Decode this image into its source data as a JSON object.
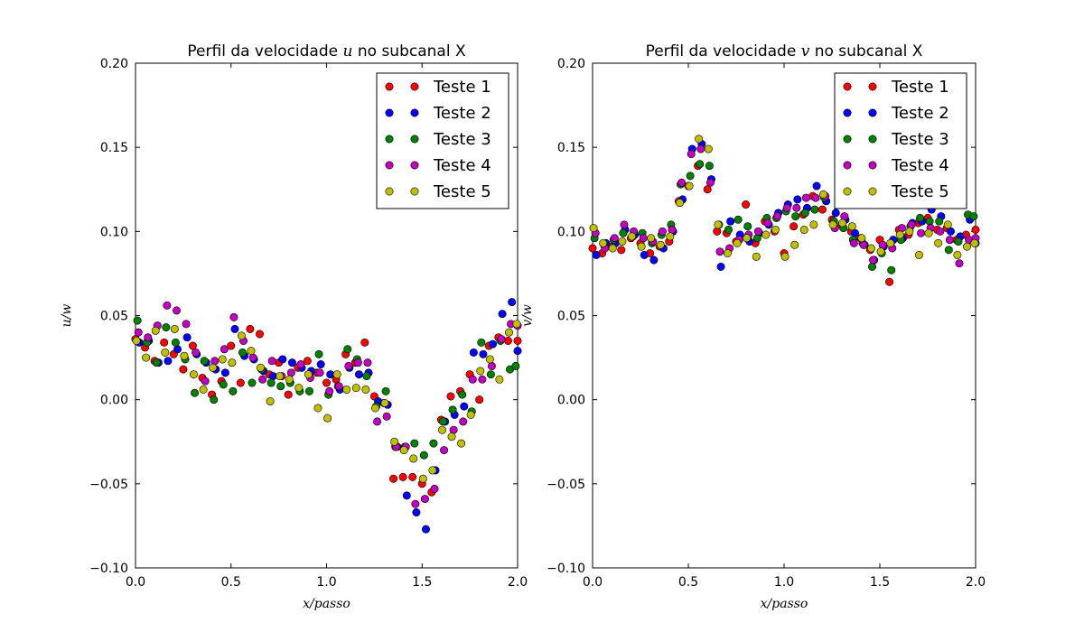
{
  "chart_data": [
    {
      "type": "scatter",
      "title_parts": [
        "Perfil da velocidade ",
        "u",
        " no subcanal X"
      ],
      "xlabel": "x/passo",
      "ylabel": "u/w",
      "xlim": [
        0.0,
        2.0
      ],
      "ylim": [
        -0.1,
        0.2
      ],
      "xticks": [
        "0.0",
        "0.5",
        "1.0",
        "1.5",
        "2.0"
      ],
      "yticks": [
        "−0.10",
        "−0.05",
        "0.00",
        "0.05",
        "0.10",
        "0.15",
        "0.20"
      ],
      "legend_position": "top-right",
      "series": [
        {
          "name": "Teste 1",
          "color": "#ff0000",
          "x": [
            0.0,
            0.05,
            0.1,
            0.15,
            0.2,
            0.25,
            0.3,
            0.35,
            0.4,
            0.45,
            0.5,
            0.55,
            0.6,
            0.65,
            0.7,
            0.75,
            0.8,
            0.85,
            0.9,
            0.95,
            1.0,
            1.05,
            1.1,
            1.15,
            1.2,
            1.25,
            1.3,
            1.35,
            1.4,
            1.45,
            1.5,
            1.55,
            1.6,
            1.65,
            1.7,
            1.75,
            1.8,
            1.85,
            1.9,
            1.95,
            2.0
          ],
          "y": [
            0.036,
            0.031,
            0.023,
            0.034,
            0.027,
            0.018,
            0.032,
            0.013,
            0.003,
            0.011,
            0.032,
            0.01,
            0.042,
            0.039,
            0.015,
            0.022,
            0.003,
            0.019,
            0.023,
            0.016,
            0.01,
            0.012,
            0.027,
            0.022,
            0.034,
            0.002,
            -0.002,
            -0.047,
            -0.046,
            -0.046,
            -0.05,
            -0.055,
            -0.012,
            0.002,
            0.005,
            0.015,
            0.0,
            0.032,
            0.037,
            0.035,
            0.035
          ]
        },
        {
          "name": "Teste 2",
          "color": "#0000ff",
          "x": [
            0.02,
            0.07,
            0.12,
            0.17,
            0.22,
            0.27,
            0.32,
            0.37,
            0.42,
            0.47,
            0.52,
            0.57,
            0.62,
            0.67,
            0.72,
            0.77,
            0.82,
            0.87,
            0.92,
            0.97,
            1.02,
            1.07,
            1.12,
            1.17,
            1.22,
            1.27,
            1.32,
            1.37,
            1.42,
            1.47,
            1.52,
            1.57,
            1.62,
            1.67,
            1.72,
            1.77,
            1.82,
            1.87,
            1.92,
            1.97,
            2.0
          ],
          "y": [
            0.034,
            0.035,
            0.022,
            0.023,
            0.03,
            0.037,
            0.027,
            0.022,
            0.018,
            0.016,
            0.042,
            0.026,
            0.024,
            0.017,
            0.014,
            0.024,
            0.022,
            0.019,
            0.017,
            0.021,
            0.015,
            0.006,
            0.019,
            0.015,
            0.016,
            -0.001,
            -0.003,
            -0.028,
            -0.057,
            -0.067,
            -0.077,
            -0.042,
            -0.013,
            -0.009,
            -0.004,
            0.028,
            0.027,
            0.033,
            0.051,
            0.058,
            0.029
          ]
        },
        {
          "name": "Teste 3",
          "color": "#008000",
          "x": [
            0.01,
            0.06,
            0.11,
            0.16,
            0.21,
            0.26,
            0.31,
            0.36,
            0.41,
            0.46,
            0.51,
            0.56,
            0.61,
            0.66,
            0.71,
            0.76,
            0.81,
            0.86,
            0.91,
            0.96,
            1.01,
            1.06,
            1.11,
            1.16,
            1.21,
            1.26,
            1.31,
            1.36,
            1.41,
            1.46,
            1.51,
            1.56,
            1.61,
            1.66,
            1.71,
            1.76,
            1.81,
            1.86,
            1.91,
            1.96,
            1.99
          ],
          "y": [
            0.047,
            0.034,
            0.022,
            0.043,
            0.034,
            0.024,
            0.004,
            0.023,
            0.0,
            0.009,
            0.005,
            0.028,
            0.01,
            0.018,
            0.01,
            0.008,
            0.01,
            0.005,
            0.005,
            0.027,
            0.003,
            0.008,
            0.03,
            0.024,
            0.014,
            -0.004,
            0.005,
            -0.028,
            -0.028,
            -0.026,
            -0.033,
            -0.026,
            -0.013,
            -0.006,
            0.003,
            -0.007,
            0.034,
            0.015,
            0.035,
            0.018,
            0.02
          ]
        },
        {
          "name": "Teste 4",
          "color": "#bf00bf",
          "x": [
            0.015,
            0.065,
            0.115,
            0.165,
            0.215,
            0.265,
            0.315,
            0.365,
            0.415,
            0.465,
            0.515,
            0.565,
            0.615,
            0.665,
            0.715,
            0.765,
            0.815,
            0.865,
            0.915,
            0.965,
            1.015,
            1.065,
            1.115,
            1.165,
            1.215,
            1.265,
            1.315,
            1.365,
            1.415,
            1.465,
            1.515,
            1.565,
            1.615,
            1.665,
            1.715,
            1.765,
            1.815,
            1.865,
            1.915,
            1.965,
            2.0
          ],
          "y": [
            0.04,
            0.037,
            0.044,
            0.056,
            0.053,
            0.045,
            0.028,
            0.011,
            0.023,
            0.03,
            0.049,
            0.035,
            0.025,
            0.012,
            0.023,
            0.014,
            0.016,
            0.021,
            0.013,
            0.016,
            0.005,
            0.008,
            0.02,
            0.022,
            0.022,
            -0.013,
            -0.01,
            -0.028,
            -0.028,
            -0.062,
            -0.059,
            -0.053,
            -0.03,
            -0.018,
            -0.013,
            0.012,
            0.012,
            0.02,
            0.036,
            0.045,
            0.044
          ]
        },
        {
          "name": "Teste 5",
          "color": "#bfbf00",
          "x": [
            0.005,
            0.055,
            0.105,
            0.155,
            0.205,
            0.255,
            0.305,
            0.355,
            0.405,
            0.455,
            0.505,
            0.555,
            0.605,
            0.655,
            0.705,
            0.755,
            0.805,
            0.855,
            0.905,
            0.955,
            1.005,
            1.055,
            1.105,
            1.155,
            1.205,
            1.255,
            1.305,
            1.355,
            1.405,
            1.455,
            1.505,
            1.555,
            1.605,
            1.655,
            1.705,
            1.755,
            1.805,
            1.855,
            1.905,
            1.955,
            1.995
          ],
          "y": [
            0.035,
            0.025,
            0.041,
            0.028,
            0.042,
            0.026,
            0.015,
            0.006,
            0.019,
            0.024,
            0.022,
            0.038,
            0.029,
            0.019,
            -0.001,
            0.014,
            0.012,
            0.007,
            0.015,
            -0.005,
            -0.011,
            0.015,
            0.006,
            0.007,
            0.006,
            -0.005,
            -0.002,
            -0.025,
            -0.03,
            -0.035,
            -0.047,
            -0.042,
            -0.018,
            -0.022,
            -0.026,
            -0.009,
            0.017,
            0.024,
            0.012,
            0.04,
            0.045
          ]
        }
      ]
    },
    {
      "type": "scatter",
      "title_parts": [
        "Perfil da velocidade ",
        "v",
        " no subcanal X"
      ],
      "xlabel": "x/passo",
      "ylabel": "v/w",
      "xlim": [
        0.0,
        2.0
      ],
      "ylim": [
        -0.1,
        0.2
      ],
      "xticks": [
        "0.0",
        "0.5",
        "1.0",
        "1.5",
        "2.0"
      ],
      "yticks": [
        "−0.10",
        "−0.05",
        "0.00",
        "0.05",
        "0.10",
        "0.15",
        "0.20"
      ],
      "legend_position": "top-right",
      "series": [
        {
          "name": "Teste 1",
          "color": "#ff0000",
          "x": [
            0.0,
            0.05,
            0.1,
            0.15,
            0.2,
            0.25,
            0.3,
            0.35,
            0.4,
            0.45,
            0.5,
            0.55,
            0.6,
            0.65,
            0.7,
            0.75,
            0.8,
            0.85,
            0.9,
            0.95,
            1.0,
            1.05,
            1.1,
            1.15,
            1.2,
            1.25,
            1.3,
            1.35,
            1.4,
            1.45,
            1.5,
            1.55,
            1.6,
            1.65,
            1.7,
            1.75,
            1.8,
            1.85,
            1.9,
            1.95,
            2.0
          ],
          "y": [
            0.09,
            0.087,
            0.091,
            0.089,
            0.096,
            0.093,
            0.087,
            0.091,
            0.094,
            0.118,
            0.127,
            0.139,
            0.125,
            0.1,
            0.099,
            0.094,
            0.116,
            0.093,
            0.106,
            0.1,
            0.087,
            0.103,
            0.11,
            0.121,
            0.113,
            0.107,
            0.104,
            0.1,
            0.096,
            0.089,
            0.095,
            0.07,
            0.101,
            0.098,
            0.105,
            0.108,
            0.101,
            0.102,
            0.095,
            0.098,
            0.101
          ]
        },
        {
          "name": "Teste 2",
          "color": "#0000ff",
          "x": [
            0.02,
            0.07,
            0.12,
            0.17,
            0.22,
            0.27,
            0.32,
            0.37,
            0.42,
            0.47,
            0.52,
            0.57,
            0.62,
            0.67,
            0.72,
            0.77,
            0.82,
            0.87,
            0.92,
            0.97,
            1.02,
            1.07,
            1.12,
            1.17,
            1.22,
            1.27,
            1.32,
            1.37,
            1.42,
            1.47,
            1.52,
            1.57,
            1.62,
            1.67,
            1.72,
            1.77,
            1.82,
            1.87,
            1.92,
            1.97,
            2.0
          ],
          "y": [
            0.086,
            0.093,
            0.093,
            0.101,
            0.098,
            0.086,
            0.083,
            0.09,
            0.1,
            0.119,
            0.149,
            0.152,
            0.131,
            0.079,
            0.106,
            0.098,
            0.094,
            0.099,
            0.104,
            0.111,
            0.116,
            0.119,
            0.114,
            0.127,
            0.118,
            0.111,
            0.107,
            0.099,
            0.092,
            0.083,
            0.091,
            0.095,
            0.096,
            0.105,
            0.106,
            0.113,
            0.109,
            0.1,
            0.097,
            0.107,
            0.093
          ]
        },
        {
          "name": "Teste 3",
          "color": "#008000",
          "x": [
            0.01,
            0.06,
            0.11,
            0.16,
            0.21,
            0.26,
            0.31,
            0.36,
            0.41,
            0.46,
            0.51,
            0.56,
            0.61,
            0.66,
            0.71,
            0.76,
            0.81,
            0.86,
            0.91,
            0.96,
            1.01,
            1.06,
            1.11,
            1.16,
            1.21,
            1.26,
            1.31,
            1.36,
            1.41,
            1.46,
            1.51,
            1.56,
            1.61,
            1.66,
            1.71,
            1.76,
            1.81,
            1.86,
            1.91,
            1.96,
            1.99
          ],
          "y": [
            0.096,
            0.092,
            0.095,
            0.099,
            0.097,
            0.099,
            0.093,
            0.098,
            0.104,
            0.128,
            0.133,
            0.14,
            0.139,
            0.104,
            0.101,
            0.107,
            0.103,
            0.096,
            0.108,
            0.108,
            0.112,
            0.109,
            0.111,
            0.113,
            0.12,
            0.106,
            0.102,
            0.095,
            0.093,
            0.079,
            0.087,
            0.077,
            0.095,
            0.103,
            0.108,
            0.106,
            0.106,
            0.089,
            0.094,
            0.11,
            0.109
          ]
        },
        {
          "name": "Teste 4",
          "color": "#bf00bf",
          "x": [
            0.015,
            0.065,
            0.115,
            0.165,
            0.215,
            0.265,
            0.315,
            0.365,
            0.415,
            0.465,
            0.515,
            0.565,
            0.615,
            0.665,
            0.715,
            0.765,
            0.815,
            0.865,
            0.915,
            0.965,
            1.015,
            1.065,
            1.115,
            1.165,
            1.215,
            1.265,
            1.315,
            1.365,
            1.415,
            1.465,
            1.515,
            1.565,
            1.615,
            1.665,
            1.715,
            1.765,
            1.815,
            1.865,
            1.915,
            1.965,
            2.0
          ],
          "y": [
            0.099,
            0.09,
            0.096,
            0.104,
            0.1,
            0.096,
            0.094,
            0.1,
            0.101,
            0.129,
            0.146,
            0.149,
            0.129,
            0.088,
            0.09,
            0.095,
            0.098,
            0.1,
            0.105,
            0.109,
            0.114,
            0.114,
            0.12,
            0.12,
            0.121,
            0.102,
            0.109,
            0.093,
            0.092,
            0.083,
            0.092,
            0.09,
            0.102,
            0.104,
            0.099,
            0.102,
            0.1,
            0.095,
            0.081,
            0.095,
            0.096
          ]
        },
        {
          "name": "Teste 5",
          "color": "#bfbf00",
          "x": [
            0.005,
            0.055,
            0.105,
            0.155,
            0.205,
            0.255,
            0.305,
            0.355,
            0.405,
            0.455,
            0.505,
            0.555,
            0.605,
            0.655,
            0.705,
            0.755,
            0.805,
            0.855,
            0.905,
            0.955,
            1.005,
            1.055,
            1.105,
            1.155,
            1.205,
            1.255,
            1.305,
            1.355,
            1.405,
            1.455,
            1.505,
            1.555,
            1.605,
            1.655,
            1.705,
            1.755,
            1.805,
            1.855,
            1.905,
            1.955,
            1.995
          ],
          "y": [
            0.102,
            0.093,
            0.09,
            0.094,
            0.097,
            0.091,
            0.096,
            0.092,
            0.097,
            0.117,
            0.127,
            0.155,
            0.149,
            0.104,
            0.087,
            0.093,
            0.096,
            0.085,
            0.098,
            0.101,
            0.085,
            0.092,
            0.101,
            0.104,
            0.122,
            0.104,
            0.105,
            0.103,
            0.096,
            0.09,
            0.088,
            0.093,
            0.098,
            0.1,
            0.086,
            0.099,
            0.093,
            0.104,
            0.086,
            0.091,
            0.093
          ]
        }
      ]
    }
  ]
}
